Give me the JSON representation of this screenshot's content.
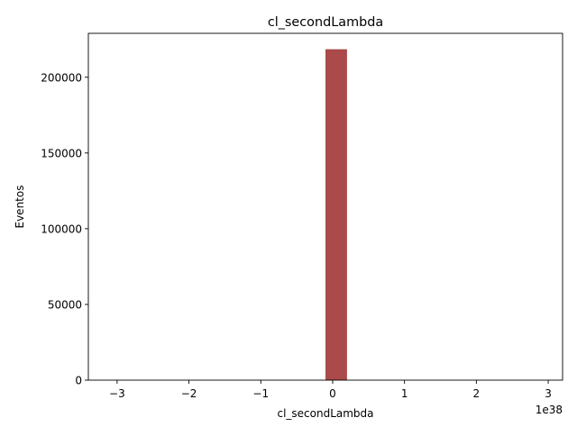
{
  "chart_data": {
    "type": "bar",
    "title": "cl_secondLambda",
    "xlabel": "cl_secondLambda",
    "ylabel": "Eventos",
    "x_offset_label": "1e38",
    "x_scale": 1e+38,
    "xlim": [
      -3.4,
      3.2
    ],
    "ylim": [
      0,
      229000
    ],
    "x_ticks": [
      -3,
      -2,
      -1,
      0,
      1,
      2,
      3
    ],
    "x_tick_labels": [
      "−3",
      "−2",
      "−1",
      "0",
      "1",
      "2",
      "3"
    ],
    "y_ticks": [
      0,
      50000,
      100000,
      150000,
      200000
    ],
    "y_tick_labels": [
      "0",
      "50000",
      "100000",
      "150000",
      "200000"
    ],
    "bars": [
      {
        "x_start": -0.1,
        "x_end": 0.2,
        "value": 218500
      }
    ],
    "bar_color": "#aa4a4a",
    "grid": false,
    "legend": "none"
  }
}
